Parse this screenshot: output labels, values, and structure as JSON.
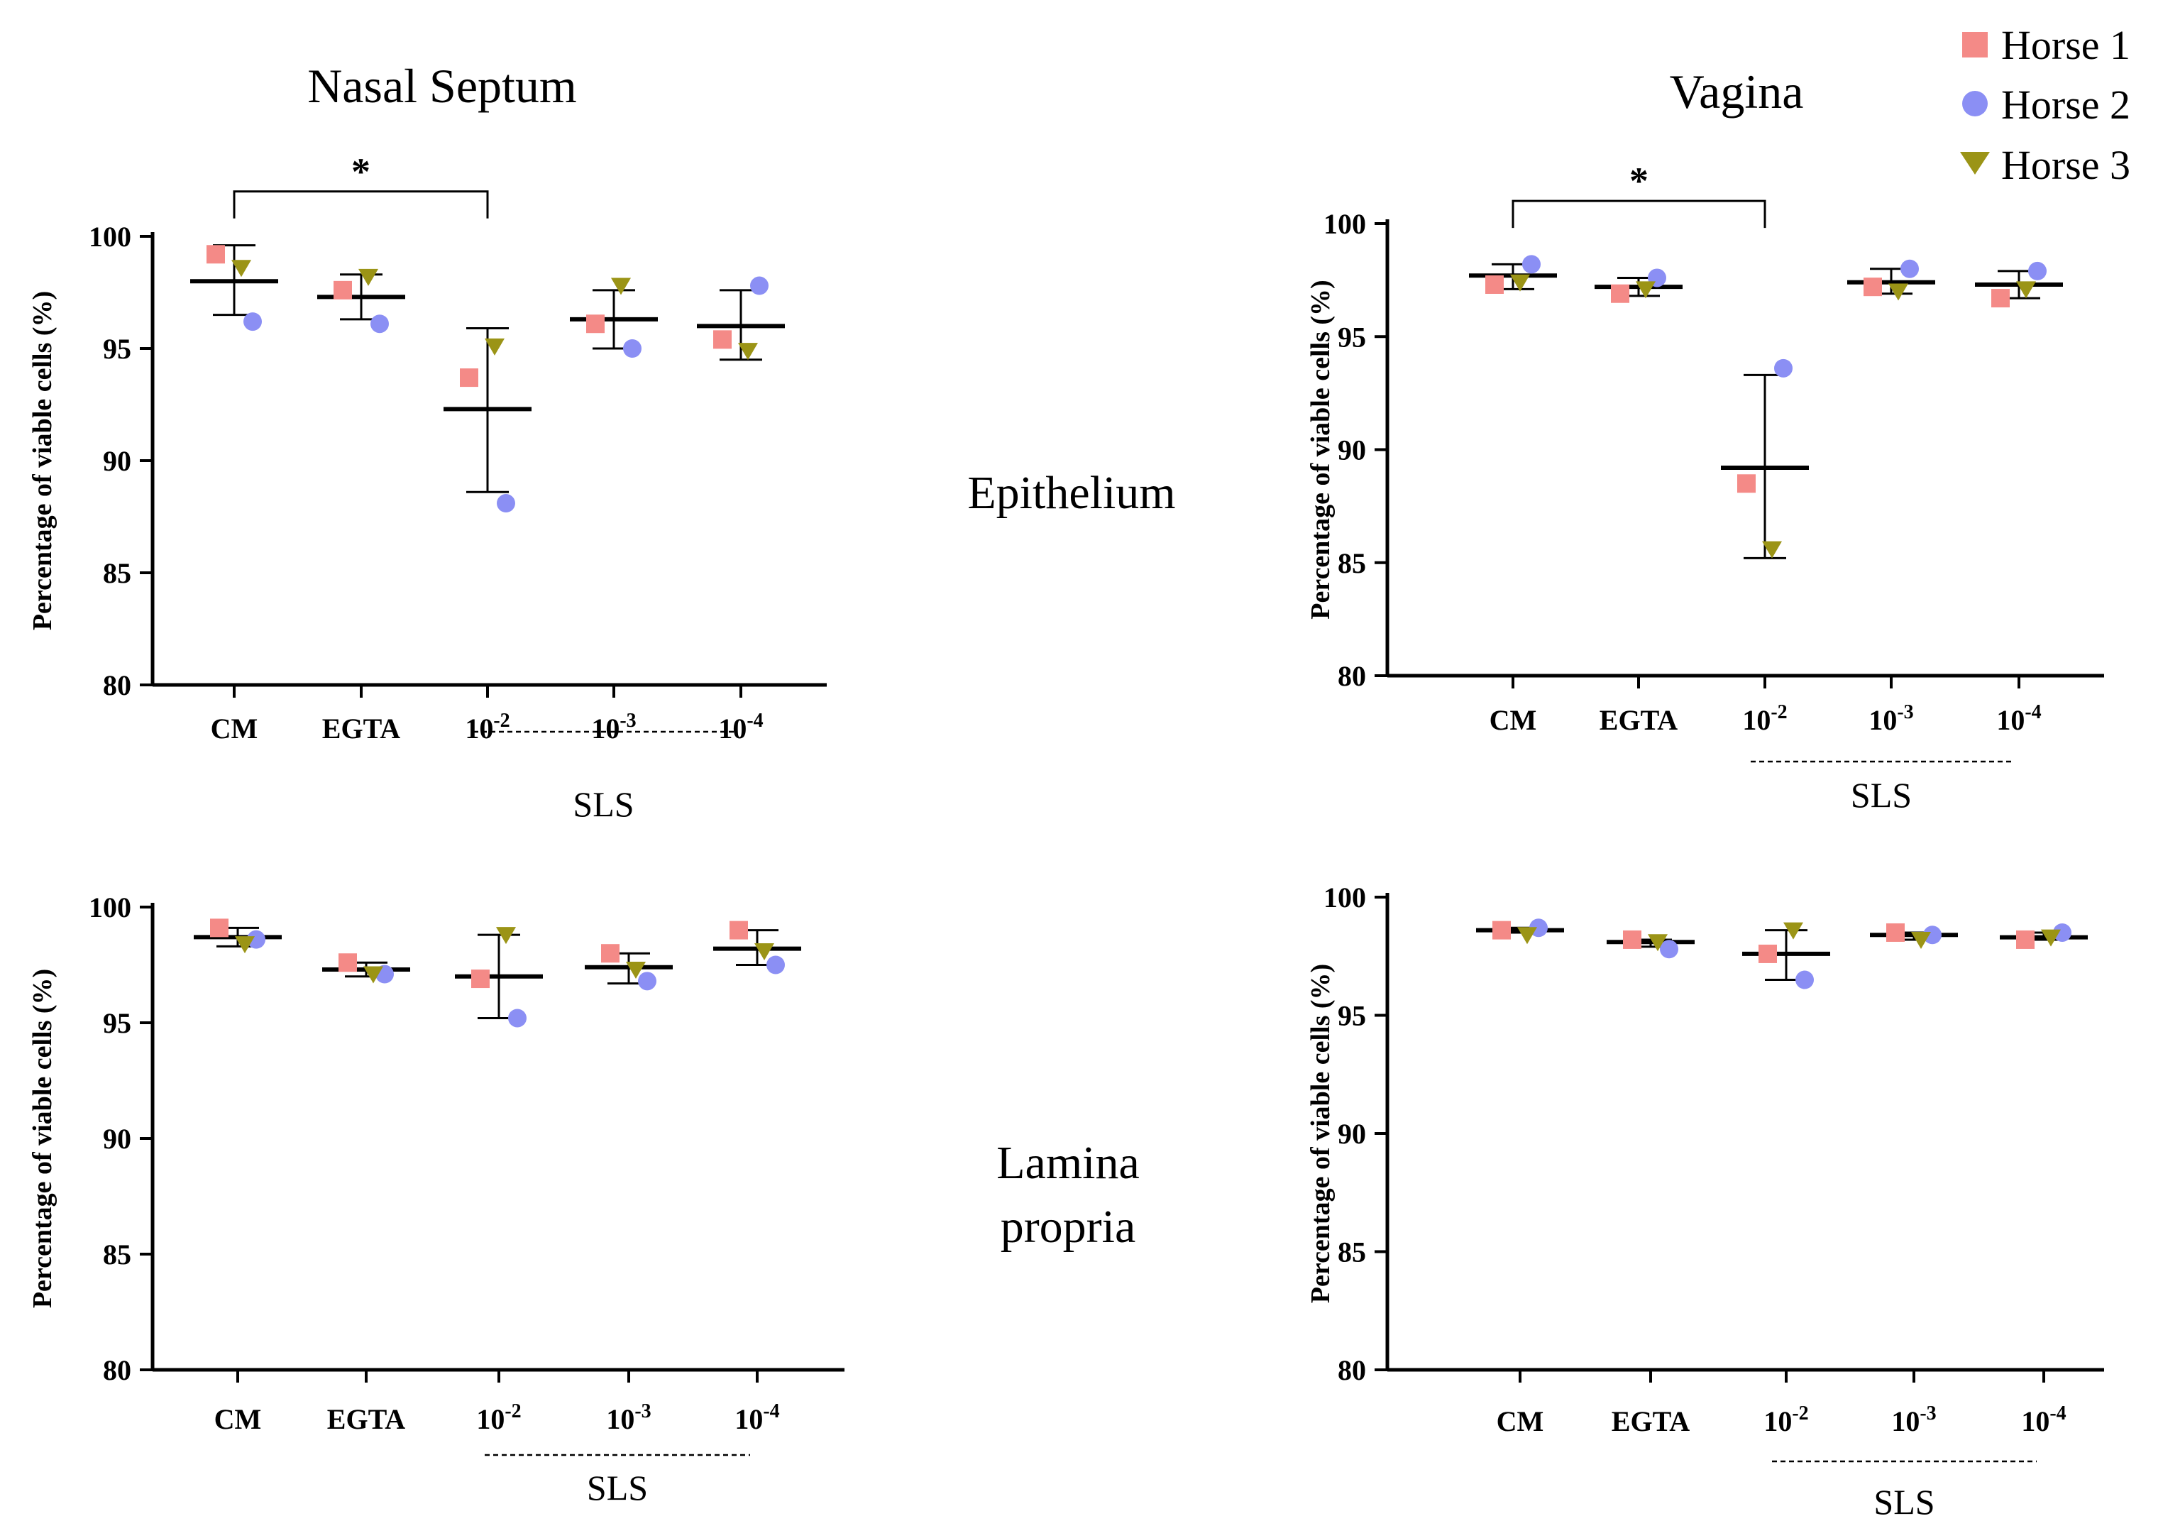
{
  "figure": {
    "column_titles": [
      "Nasal Septum",
      "Vagina"
    ],
    "row_labels": [
      "Epithelium",
      "Lamina\npropria"
    ],
    "legend": [
      {
        "name": "Horse 1",
        "marker": "square",
        "color": "#f48a87"
      },
      {
        "name": "Horse 2",
        "marker": "circle",
        "color": "#8b8ff4"
      },
      {
        "name": "Horse 3",
        "marker": "triangle-down",
        "color": "#9b9416"
      }
    ]
  },
  "chart_data": [
    {
      "id": "nasal-epithelium",
      "type": "scatter",
      "title": "Nasal Septum",
      "ylabel": "Percentage of viable  cells (%)",
      "ylim": [
        80,
        100
      ],
      "yticks": [
        80,
        85,
        90,
        95,
        100
      ],
      "categories": [
        "CM",
        "EGTA",
        "10-2",
        "10-3",
        "10-4"
      ],
      "category_labels": [
        {
          "base": "CM",
          "exp": ""
        },
        {
          "base": "EGTA",
          "exp": ""
        },
        {
          "base": "10",
          "exp": "-2"
        },
        {
          "base": "10",
          "exp": "-3"
        },
        {
          "base": "10",
          "exp": "-4"
        }
      ],
      "group_label": "SLS",
      "series": [
        {
          "name": "Horse 1",
          "values": [
            99.2,
            97.6,
            93.7,
            96.1,
            95.4
          ]
        },
        {
          "name": "Horse 2",
          "values": [
            96.2,
            96.1,
            88.1,
            95.0,
            97.8
          ]
        },
        {
          "name": "Horse 3",
          "values": [
            98.6,
            98.2,
            95.1,
            97.8,
            94.9
          ]
        }
      ],
      "mean": [
        98.0,
        97.3,
        92.3,
        96.3,
        96.0
      ],
      "sd_low": [
        96.5,
        96.3,
        88.6,
        95.0,
        94.5
      ],
      "sd_high": [
        99.6,
        98.3,
        95.9,
        97.6,
        97.6
      ],
      "significance": {
        "from": "CM",
        "to": "10-2",
        "label": "*",
        "y": 102.0
      }
    },
    {
      "id": "vagina-epithelium",
      "type": "scatter",
      "title": "Vagina",
      "ylabel": "Percentage of viable  cells (%)",
      "ylim": [
        80,
        100
      ],
      "yticks": [
        80,
        85,
        90,
        95,
        100
      ],
      "categories": [
        "CM",
        "EGTA",
        "10-2",
        "10-3",
        "10-4"
      ],
      "category_labels": [
        {
          "base": "CM",
          "exp": ""
        },
        {
          "base": "EGTA",
          "exp": ""
        },
        {
          "base": "10",
          "exp": "-2"
        },
        {
          "base": "10",
          "exp": "-3"
        },
        {
          "base": "10",
          "exp": "-4"
        }
      ],
      "group_label": "SLS",
      "series": [
        {
          "name": "Horse 1",
          "values": [
            97.3,
            96.9,
            88.5,
            97.2,
            96.7
          ]
        },
        {
          "name": "Horse 2",
          "values": [
            98.2,
            97.6,
            93.6,
            98.0,
            97.9
          ]
        },
        {
          "name": "Horse 3",
          "values": [
            97.4,
            97.1,
            85.6,
            97.0,
            97.1
          ]
        }
      ],
      "mean": [
        97.7,
        97.2,
        89.2,
        97.4,
        97.3
      ],
      "sd_low": [
        97.1,
        96.8,
        85.2,
        96.9,
        96.7
      ],
      "sd_high": [
        98.2,
        97.6,
        93.3,
        98.0,
        97.9
      ],
      "significance": {
        "from": "CM",
        "to": "10-2",
        "label": "*",
        "y": 101.0
      }
    },
    {
      "id": "nasal-lamina",
      "type": "scatter",
      "title": "",
      "ylabel": "Percentage of viable  cells (%)",
      "ylim": [
        80,
        100
      ],
      "yticks": [
        80,
        85,
        90,
        95,
        100
      ],
      "categories": [
        "CM",
        "EGTA",
        "10-2",
        "10-3",
        "10-4"
      ],
      "category_labels": [
        {
          "base": "CM",
          "exp": ""
        },
        {
          "base": "EGTA",
          "exp": ""
        },
        {
          "base": "10",
          "exp": "-2"
        },
        {
          "base": "10",
          "exp": "-3"
        },
        {
          "base": "10",
          "exp": "-4"
        }
      ],
      "group_label": "SLS",
      "series": [
        {
          "name": "Horse 1",
          "values": [
            99.1,
            97.6,
            96.9,
            98.0,
            99.0
          ]
        },
        {
          "name": "Horse 2",
          "values": [
            98.6,
            97.1,
            95.2,
            96.8,
            97.5
          ]
        },
        {
          "name": "Horse 3",
          "values": [
            98.4,
            97.1,
            98.8,
            97.3,
            98.1
          ]
        }
      ],
      "mean": [
        98.7,
        97.3,
        97.0,
        97.4,
        98.2
      ],
      "sd_low": [
        98.3,
        97.0,
        95.2,
        96.7,
        97.5
      ],
      "sd_high": [
        99.1,
        97.6,
        98.8,
        98.0,
        99.0
      ],
      "significance": null
    },
    {
      "id": "vagina-lamina",
      "type": "scatter",
      "title": "",
      "ylabel": "Percentage of viable  cells (%)",
      "ylim": [
        80,
        100
      ],
      "yticks": [
        80,
        85,
        90,
        95,
        100
      ],
      "categories": [
        "CM",
        "EGTA",
        "10-2",
        "10-3",
        "10-4"
      ],
      "category_labels": [
        {
          "base": "CM",
          "exp": ""
        },
        {
          "base": "EGTA",
          "exp": ""
        },
        {
          "base": "10",
          "exp": "-2"
        },
        {
          "base": "10",
          "exp": "-3"
        },
        {
          "base": "10",
          "exp": "-4"
        }
      ],
      "group_label": "SLS",
      "series": [
        {
          "name": "Horse 1",
          "values": [
            98.6,
            98.2,
            97.6,
            98.5,
            98.2
          ]
        },
        {
          "name": "Horse 2",
          "values": [
            98.7,
            97.8,
            96.5,
            98.4,
            98.5
          ]
        },
        {
          "name": "Horse 3",
          "values": [
            98.4,
            98.1,
            98.6,
            98.2,
            98.3
          ]
        }
      ],
      "mean": [
        98.6,
        98.1,
        97.6,
        98.4,
        98.3
      ],
      "sd_low": [
        98.5,
        97.9,
        96.5,
        98.2,
        98.2
      ],
      "sd_high": [
        98.7,
        98.2,
        98.6,
        98.5,
        98.5
      ],
      "significance": null
    }
  ]
}
